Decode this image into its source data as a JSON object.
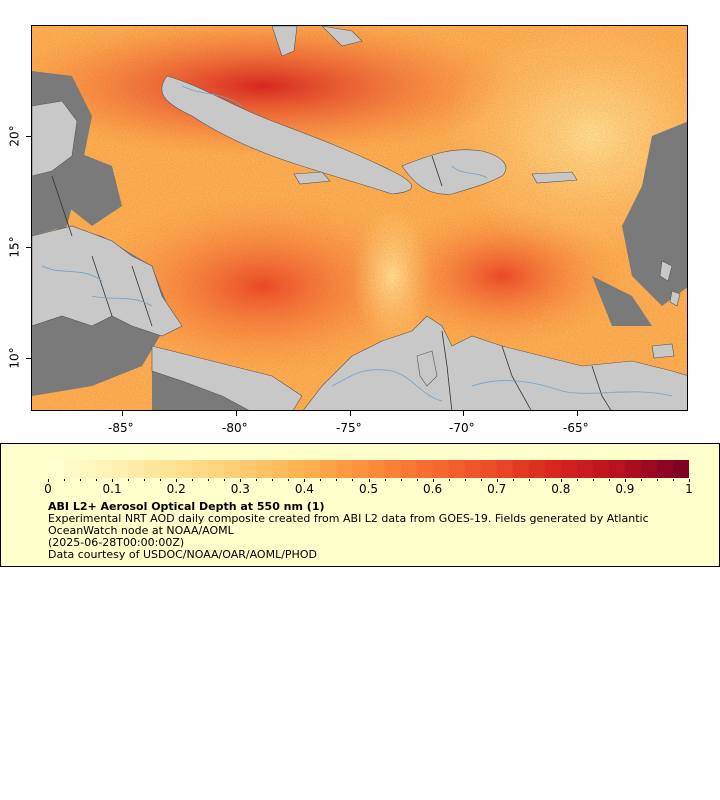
{
  "map": {
    "lat_labels": [
      "20°",
      "15°",
      "10°"
    ],
    "lon_labels": [
      "-85°",
      "-80°",
      "-75°",
      "-70°",
      "-65°"
    ],
    "colors": {
      "no_data_land": "#c8c8c8",
      "cloud_gap": "#7a7a7a",
      "borders": "#333333",
      "rivers": "#6fa2cc"
    }
  },
  "legend": {
    "colorbar_labels": [
      "0",
      "0.1",
      "0.2",
      "0.3",
      "0.4",
      "0.5",
      "0.6",
      "0.7",
      "0.8",
      "0.9",
      "1"
    ],
    "colorscale": [
      "#ffffd0",
      "#fff0b0",
      "#ffe090",
      "#fecb70",
      "#fdb050",
      "#fc8d3c",
      "#f86b30",
      "#ec4a26",
      "#d7261e",
      "#b8101f",
      "#800026"
    ],
    "title": "ABI L2+ Aerosol Optical Depth at 550 nm (1)",
    "line1": "Experimental NRT AOD daily composite created from ABI L2 data from GOES-19. Fields generated by Atlantic",
    "line2": "OceanWatch node at NOAA/AOML",
    "line3": "(2025-06-28T00:00:00Z)",
    "line4": "Data courtesy of USDOC/NOAA/OAR/AOML/PHOD"
  }
}
